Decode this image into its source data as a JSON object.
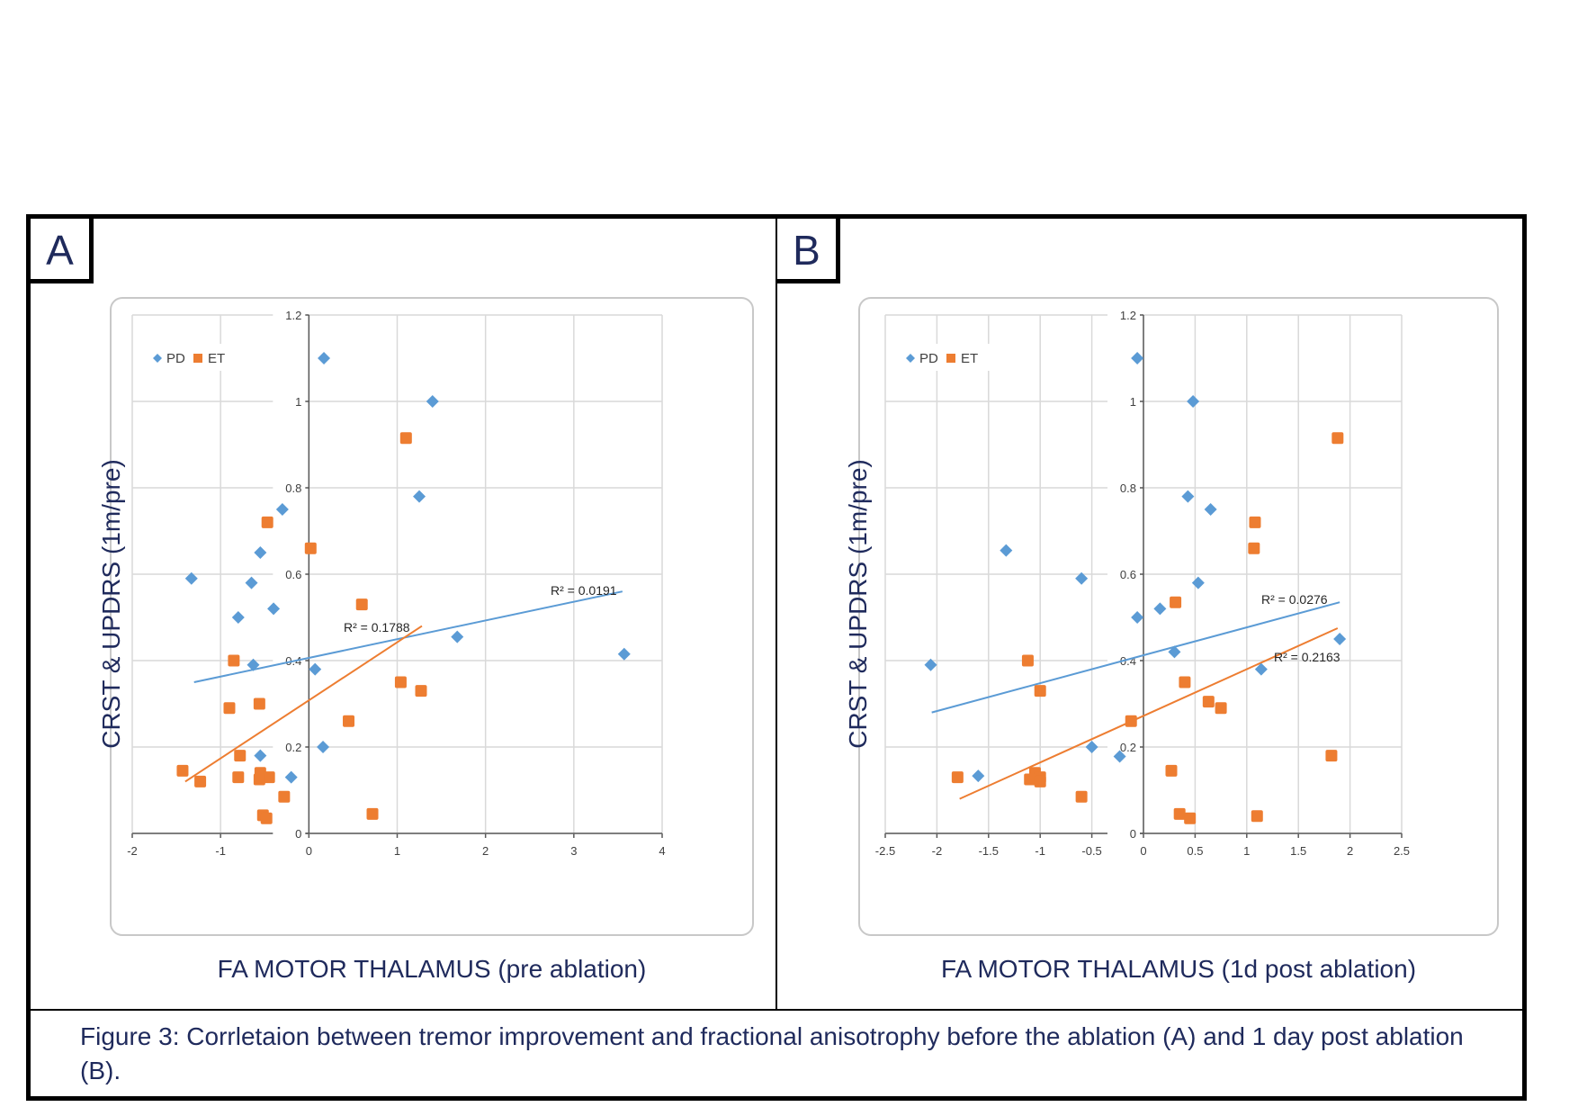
{
  "caption": "Figure 3: Corrletaion between tremor improvement and fractional anisotrophy before the ablation (A) and 1 day post ablation (B).",
  "colors": {
    "PD": "#5b9bd5",
    "ET": "#ed7d31",
    "grid": "#d9d9d9",
    "text_dark": "#1f2a5c"
  },
  "panels": [
    {
      "label": "A",
      "ylabel": "CRST & UPDRS (1m/pre)",
      "xlabel": "FA MOTOR THALAMUS (pre ablation)"
    },
    {
      "label": "B",
      "ylabel": "CRST & UPDRS (1m/pre)",
      "xlabel": "FA MOTOR THALAMUS (1d post ablation)"
    }
  ],
  "chart_data": [
    {
      "type": "scatter",
      "xlim": [
        -2,
        4
      ],
      "ylim": [
        0,
        1.2
      ],
      "xticks": [
        "-2",
        "-1",
        "0",
        "1",
        "2",
        "3",
        "4"
      ],
      "yticks": [
        "0",
        "0.2",
        "0.4",
        "0.6",
        "0.8",
        "1",
        "1.2"
      ],
      "grid": true,
      "legend": "top-left",
      "series": [
        {
          "name": "PD",
          "marker": "diamond",
          "points": [
            [
              0.17,
              1.1
            ],
            [
              1.4,
              1.0
            ],
            [
              1.25,
              0.78
            ],
            [
              -0.3,
              0.75
            ],
            [
              -0.55,
              0.65
            ],
            [
              -1.33,
              0.59
            ],
            [
              -0.65,
              0.58
            ],
            [
              -0.4,
              0.52
            ],
            [
              -0.8,
              0.5
            ],
            [
              1.68,
              0.455
            ],
            [
              3.57,
              0.415
            ],
            [
              -0.63,
              0.39
            ],
            [
              0.07,
              0.38
            ],
            [
              0.16,
              0.2
            ],
            [
              -0.55,
              0.18
            ],
            [
              -0.2,
              0.13
            ]
          ],
          "trendline": {
            "x": [
              -1.3,
              3.55
            ],
            "y": [
              0.35,
              0.56
            ],
            "label": "R² = 0.0191"
          }
        },
        {
          "name": "ET",
          "marker": "square",
          "points": [
            [
              1.1,
              0.915
            ],
            [
              -0.47,
              0.72
            ],
            [
              0.02,
              0.66
            ],
            [
              0.6,
              0.53
            ],
            [
              -0.85,
              0.4
            ],
            [
              1.04,
              0.35
            ],
            [
              1.27,
              0.33
            ],
            [
              -0.56,
              0.3
            ],
            [
              -0.9,
              0.29
            ],
            [
              0.45,
              0.26
            ],
            [
              -0.78,
              0.18
            ],
            [
              -1.43,
              0.145
            ],
            [
              -0.55,
              0.14
            ],
            [
              -0.45,
              0.13
            ],
            [
              -0.8,
              0.13
            ],
            [
              -0.56,
              0.125
            ],
            [
              -1.23,
              0.12
            ],
            [
              -0.28,
              0.085
            ],
            [
              0.72,
              0.045
            ],
            [
              -0.52,
              0.042
            ],
            [
              -0.48,
              0.035
            ]
          ],
          "trendline": {
            "x": [
              -1.4,
              1.28
            ],
            "y": [
              0.12,
              0.48
            ],
            "label": "R² = 0.1788"
          }
        }
      ]
    },
    {
      "type": "scatter",
      "xlim": [
        -2.5,
        2.5
      ],
      "ylim": [
        0,
        1.2
      ],
      "xticks": [
        "-2.5",
        "-2",
        "-1.5",
        "-1",
        "-0.5",
        "0",
        "0.5",
        "1",
        "1.5",
        "2",
        "2.5"
      ],
      "yticks": [
        "0",
        "0.2",
        "0.4",
        "0.6",
        "0.8",
        "1",
        "1.2"
      ],
      "grid": true,
      "legend": "top-left",
      "series": [
        {
          "name": "PD",
          "marker": "diamond",
          "points": [
            [
              -0.06,
              1.1
            ],
            [
              0.48,
              1.0
            ],
            [
              0.43,
              0.78
            ],
            [
              0.65,
              0.75
            ],
            [
              -1.33,
              0.655
            ],
            [
              -0.6,
              0.59
            ],
            [
              0.53,
              0.58
            ],
            [
              0.16,
              0.52
            ],
            [
              -0.06,
              0.5
            ],
            [
              1.9,
              0.45
            ],
            [
              0.3,
              0.42
            ],
            [
              -2.06,
              0.39
            ],
            [
              1.14,
              0.38
            ],
            [
              -0.5,
              0.2
            ],
            [
              -0.23,
              0.178
            ],
            [
              -1.6,
              0.133
            ]
          ],
          "trendline": {
            "x": [
              -2.05,
              1.9
            ],
            "y": [
              0.28,
              0.535
            ],
            "label": "R² = 0.0276"
          }
        },
        {
          "name": "ET",
          "marker": "square",
          "points": [
            [
              1.88,
              0.915
            ],
            [
              1.08,
              0.72
            ],
            [
              1.07,
              0.66
            ],
            [
              0.31,
              0.535
            ],
            [
              -1.12,
              0.4
            ],
            [
              0.4,
              0.35
            ],
            [
              -1.0,
              0.33
            ],
            [
              0.63,
              0.305
            ],
            [
              0.75,
              0.29
            ],
            [
              -0.12,
              0.26
            ],
            [
              1.82,
              0.18
            ],
            [
              0.27,
              0.145
            ],
            [
              -1.05,
              0.14
            ],
            [
              -1.0,
              0.13
            ],
            [
              -1.8,
              0.13
            ],
            [
              -1.1,
              0.125
            ],
            [
              -1.0,
              0.12
            ],
            [
              -0.6,
              0.085
            ],
            [
              0.35,
              0.045
            ],
            [
              1.1,
              0.04
            ],
            [
              0.45,
              0.035
            ]
          ],
          "trendline": {
            "x": [
              -1.78,
              1.88
            ],
            "y": [
              0.08,
              0.475
            ],
            "label": "R² = 0.2163"
          }
        }
      ]
    }
  ]
}
